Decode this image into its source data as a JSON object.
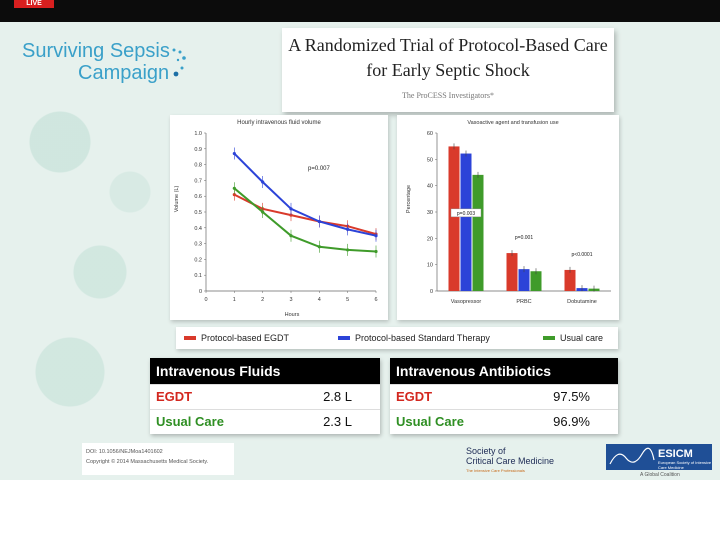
{
  "live_badge": "LIVE",
  "brand": {
    "line1": "Surviving Sepsis",
    "line2": "Campaign"
  },
  "title": {
    "line1": "A Randomized Trial of Protocol-Based Care",
    "line2": "for Early Septic Shock",
    "authors": "The ProCESS Investigators*"
  },
  "colors": {
    "egdt": "#d93a2b",
    "standard": "#2c43d8",
    "usual": "#3f9b2a"
  },
  "chart_data": [
    {
      "type": "line",
      "title": "Hourly intravenous fluid volume",
      "xlabel": "Hours",
      "ylabel": "Volume (L)",
      "xlim": [
        0,
        6
      ],
      "ylim": [
        0,
        1.0
      ],
      "x_ticks": [
        "0",
        "1",
        "2",
        "3",
        "4",
        "5",
        "6"
      ],
      "y_ticks": [
        "0",
        "0.1",
        "0.2",
        "0.3",
        "0.4",
        "0.5",
        "0.6",
        "0.7",
        "0.8",
        "0.9",
        "1.0"
      ],
      "annotation": "p=0.007",
      "x": [
        1,
        2,
        3,
        4,
        5,
        6
      ],
      "series": [
        {
          "name": "Protocol-based EGDT",
          "values": [
            0.61,
            0.52,
            0.48,
            0.44,
            0.41,
            0.36
          ]
        },
        {
          "name": "Protocol-based Standard Therapy",
          "values": [
            0.87,
            0.69,
            0.52,
            0.44,
            0.39,
            0.35
          ]
        },
        {
          "name": "Usual care",
          "values": [
            0.65,
            0.5,
            0.35,
            0.28,
            0.26,
            0.25
          ]
        }
      ]
    },
    {
      "type": "bar",
      "title": "Vasoactive agent and transfusion use",
      "ylabel": "Percentage",
      "ylim": [
        0,
        60
      ],
      "y_ticks": [
        "0",
        "10",
        "20",
        "30",
        "40",
        "50",
        "60"
      ],
      "categories": [
        "Vasopressor",
        "PRBC",
        "Dobutamine"
      ],
      "p_values": [
        "p=0.003",
        "p=0.001",
        "p<0.0001"
      ],
      "series": [
        {
          "name": "Protocol-based EGDT",
          "values": [
            54.9,
            14.4,
            8.0
          ]
        },
        {
          "name": "Protocol-based Standard Therapy",
          "values": [
            52.2,
            8.3,
            1.1
          ]
        },
        {
          "name": "Usual care",
          "values": [
            44.1,
            7.5,
            0.9
          ]
        }
      ]
    }
  ],
  "legend": [
    "Protocol-based EGDT",
    "Protocol-based Standard Therapy",
    "Usual care"
  ],
  "fluids": {
    "header": "Intravenous Fluids",
    "rows": [
      {
        "label": "EGDT",
        "value": "2.8 L"
      },
      {
        "label": "Usual Care",
        "value": "2.3 L"
      }
    ]
  },
  "antibiotics": {
    "header": "Intravenous Antibiotics",
    "rows": [
      {
        "label": "EGDT",
        "value": "97.5%"
      },
      {
        "label": "Usual Care",
        "value": "96.9%"
      }
    ]
  },
  "footer": {
    "doi": "DOI: 10.1056/NEJMoa1401602",
    "copyright": "Copyright © 2014 Massachusetts Medical Society.",
    "sccm_line1": "Society of",
    "sccm_line2": "Critical Care Medicine",
    "sccm_tag": "The Intensive Care Professionals",
    "esicm": "ESICM",
    "esicm_sub": "European Society of Intensive Care Medicine",
    "esicm_tag": "A Global Coalition"
  }
}
